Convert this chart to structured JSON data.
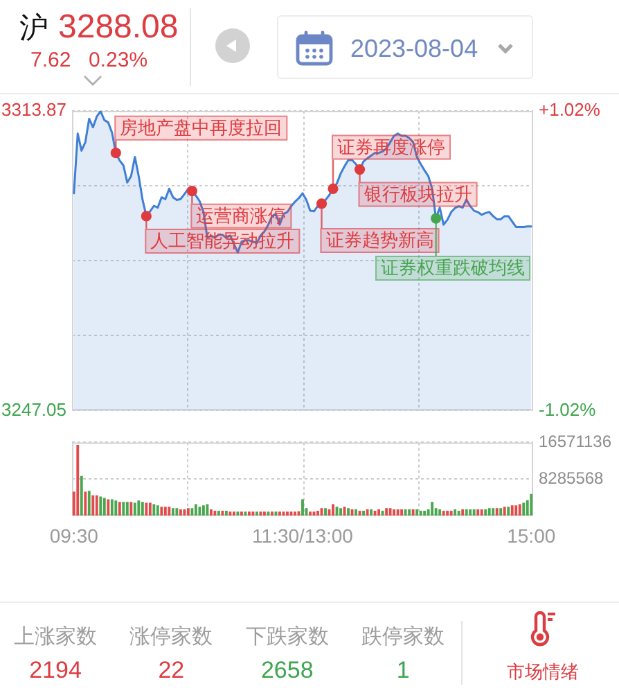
{
  "chart_data": [
    {
      "type": "other",
      "title": "沪",
      "annotations": [
        "3288.08",
        "7.62",
        "0.23%",
        "2023-08-04"
      ]
    },
    {
      "type": "area",
      "categories": [
        null,
        null,
        null,
        null,
        null,
        null,
        null,
        null,
        null,
        null,
        null,
        null,
        null,
        null,
        null,
        null,
        null,
        null,
        null,
        null,
        null,
        null,
        null,
        null,
        null,
        null,
        null,
        null,
        null,
        null,
        null,
        null,
        null,
        null,
        null,
        null,
        null,
        null,
        null,
        null,
        null,
        null,
        null,
        null,
        null,
        null,
        null,
        null,
        null,
        null,
        null,
        null,
        null,
        null,
        null,
        null,
        null,
        null,
        null,
        null,
        null,
        null,
        null,
        null,
        null,
        null,
        null,
        null,
        null,
        null,
        null,
        null,
        null,
        null,
        null,
        null,
        null,
        null,
        null,
        null,
        null,
        null,
        null,
        null,
        null,
        null,
        null,
        null,
        null,
        null,
        null,
        null,
        null,
        null,
        null,
        null,
        null,
        null,
        null,
        null,
        null,
        null,
        null,
        null,
        null,
        null,
        null,
        null,
        null,
        null,
        null,
        null,
        null,
        null,
        null,
        null,
        null,
        null,
        null,
        null,
        null
      ],
      "series": [
        {
          "type": "area",
          "color": "#3f7fd6",
          "values": [
            3295.5,
            3308.8,
            3305.0,
            3306.9,
            3312.1,
            3310.2,
            3312.6,
            3313.8,
            3311.8,
            3311.3,
            3309.0,
            3304.5,
            3302.8,
            3301.7,
            3297.9,
            3299.3,
            3303.6,
            3299.3,
            3294.1,
            3290.4,
            3291.5,
            3292.7,
            3292.3,
            3294.6,
            3294.2,
            3296.5,
            3294.6,
            3294.0,
            3294.2,
            3295.3,
            3296.5,
            3296.0,
            3295.0,
            3293.7,
            3291.3,
            3285.6,
            3286.0,
            3285.6,
            3286.3,
            3286.2,
            3285.6,
            3286.1,
            3284.2,
            3282.3,
            3284.7,
            3285.0,
            3285.0,
            3284.7,
            3284.4,
            3286.1,
            3287.0,
            3288.5,
            3290.4,
            3290.9,
            3288.5,
            3290.9,
            3291.3,
            3292.6,
            3293.6,
            3294.4,
            3295.5,
            3294.0,
            3291.6,
            3291.5,
            3292.7,
            3293.2,
            3294.0,
            3295.1,
            3296.5,
            3297.7,
            3299.9,
            3301.5,
            3302.9,
            3302.9,
            3302.0,
            3300.8,
            3302.6,
            3303.3,
            3303.9,
            3304.5,
            3304.5,
            3304.8,
            3305.5,
            3306.9,
            3308.3,
            3308.8,
            3308.3,
            3308.3,
            3307.8,
            3306.9,
            3303.6,
            3302.0,
            3300.6,
            3299.3,
            3296.5,
            3289.9,
            3292.3,
            3288.5,
            3289.6,
            3291.3,
            3292.2,
            3292.6,
            3292.3,
            3294.1,
            3292.6,
            3291.6,
            3291.3,
            3290.7,
            3291.1,
            3291.3,
            3290.4,
            3289.7,
            3289.7,
            3290.4,
            3290.4,
            3289.2,
            3288.0,
            3288.0,
            3288.0,
            3288.1,
            3288.1
          ]
        },
        {
          "type": "scatter",
          "values": [
            null,
            null,
            null,
            null,
            null,
            null,
            null,
            null,
            null,
            null,
            null,
            3304.5,
            null,
            null,
            null,
            null,
            null,
            null,
            null,
            3290.4,
            null,
            null,
            null,
            null,
            null,
            null,
            null,
            null,
            null,
            null,
            null,
            3296.0,
            null,
            null,
            null,
            null,
            null,
            null,
            null,
            null,
            null,
            null,
            null,
            null,
            null,
            null,
            null,
            null,
            null,
            null,
            null,
            null,
            null,
            null,
            null,
            null,
            null,
            null,
            null,
            null,
            null,
            null,
            null,
            null,
            null,
            3293.2,
            null,
            null,
            3296.5,
            null,
            null,
            null,
            null,
            null,
            null,
            3300.8,
            null,
            null,
            null,
            null,
            null,
            null,
            null,
            null,
            null,
            null,
            null,
            null,
            null,
            null,
            null,
            null,
            null,
            null,
            null,
            3289.9,
            null,
            null,
            null,
            null,
            null,
            null,
            null,
            null,
            null,
            null,
            null,
            null,
            null,
            null,
            null,
            null,
            null,
            null,
            null,
            null,
            null,
            null,
            null,
            null,
            null
          ],
          "colors": [
            null,
            null,
            null,
            null,
            null,
            null,
            null,
            null,
            null,
            null,
            null,
            "#df3b3f",
            null,
            null,
            null,
            null,
            null,
            null,
            null,
            "#df3b3f",
            null,
            null,
            null,
            null,
            null,
            null,
            null,
            null,
            null,
            null,
            null,
            "#df3b3f",
            null,
            null,
            null,
            null,
            null,
            null,
            null,
            null,
            null,
            null,
            null,
            null,
            null,
            null,
            null,
            null,
            null,
            null,
            null,
            null,
            null,
            null,
            null,
            null,
            null,
            null,
            null,
            null,
            null,
            null,
            null,
            null,
            null,
            "#df3b3f",
            null,
            null,
            "#df3b3f",
            null,
            null,
            null,
            null,
            null,
            null,
            "#df3b3f",
            null,
            null,
            null,
            null,
            null,
            null,
            null,
            null,
            null,
            null,
            null,
            null,
            null,
            null,
            null,
            null,
            null,
            null,
            null,
            "#46a54f",
            null,
            null,
            null,
            null,
            null,
            null,
            null,
            null,
            null,
            null,
            null,
            null,
            null,
            null,
            null,
            null,
            null,
            null,
            null,
            null,
            null,
            null,
            null,
            null,
            null
          ]
        }
      ],
      "ylim": [
        3247.05,
        3313.87
      ],
      "yticks": [
        3247.05,
        {
          "value": 3263.755,
          "label": null
        },
        {
          "value": 3280.46,
          "label": null
        },
        {
          "value": 3297.165,
          "label": null
        },
        3313.87
      ],
      "y2lim": [
        -1.02,
        1.02
      ],
      "y2ticks": [
        {
          "value": -1.02,
          "label": "-1.02%"
        },
        {
          "value": 1.02,
          "label": "+1.02%"
        }
      ],
      "tick_labels": "y",
      "grid": true,
      "annotations": [
        "房地产盘中再度拉回",
        "人工智能异动拉升",
        "运营商涨停",
        "证券趋势新高",
        "证券再度涨停",
        "银行板块拉升",
        "证券权重跌破均线"
      ]
    },
    {
      "type": "bar",
      "categories": [
        "09:30",
        null,
        null,
        null,
        null,
        null,
        null,
        null,
        null,
        null,
        null,
        null,
        null,
        null,
        null,
        null,
        null,
        null,
        null,
        null,
        null,
        null,
        null,
        null,
        null,
        null,
        null,
        null,
        null,
        null,
        null,
        null,
        null,
        null,
        null,
        null,
        null,
        null,
        null,
        null,
        null,
        null,
        null,
        null,
        null,
        null,
        null,
        null,
        null,
        null,
        null,
        null,
        null,
        null,
        null,
        null,
        null,
        null,
        null,
        null,
        "11:30/13:00",
        null,
        null,
        null,
        null,
        null,
        null,
        null,
        null,
        null,
        null,
        null,
        null,
        null,
        null,
        null,
        null,
        null,
        null,
        null,
        null,
        null,
        null,
        null,
        null,
        null,
        null,
        null,
        null,
        null,
        null,
        null,
        null,
        null,
        null,
        null,
        null,
        null,
        null,
        null,
        null,
        null,
        null,
        null,
        null,
        null,
        null,
        null,
        null,
        null,
        null,
        null,
        null,
        null,
        null,
        null,
        null,
        null,
        null,
        null,
        "15:00"
      ],
      "series": [
        {
          "axis": "y2",
          "values": [
            5400000,
            16000000,
            9000000,
            5400000,
            5600000,
            4600000,
            4600000,
            4300000,
            4000000,
            3700000,
            3700000,
            3400000,
            3100000,
            3100000,
            3100000,
            3100000,
            2900000,
            3400000,
            3100000,
            2900000,
            2900000,
            2600000,
            2300000,
            2000000,
            2000000,
            2000000,
            1700000,
            1700000,
            1400000,
            1400000,
            1700000,
            1700000,
            2600000,
            2000000,
            2300000,
            2600000,
            1400000,
            1100000,
            1100000,
            1100000,
            1100000,
            900000,
            900000,
            900000,
            900000,
            900000,
            900000,
            900000,
            900000,
            900000,
            900000,
            900000,
            900000,
            900000,
            900000,
            900000,
            900000,
            900000,
            900000,
            1000000,
            3700000,
            1700000,
            900000,
            900000,
            1100000,
            1700000,
            1700000,
            1400000,
            2600000,
            2000000,
            1700000,
            2000000,
            1700000,
            1400000,
            1400000,
            1100000,
            1100000,
            1400000,
            1400000,
            1100000,
            1400000,
            1100000,
            1700000,
            1700000,
            1400000,
            1400000,
            1400000,
            1400000,
            1400000,
            1400000,
            1400000,
            1100000,
            1100000,
            1400000,
            3100000,
            1700000,
            1400000,
            1100000,
            1100000,
            1100000,
            1400000,
            1100000,
            1400000,
            1400000,
            1400000,
            1400000,
            1400000,
            1400000,
            1400000,
            1700000,
            1700000,
            1700000,
            1700000,
            2000000,
            2000000,
            2300000,
            2300000,
            2600000,
            2900000,
            3500000,
            4900000
          ],
          "colors": [
            "#e04b4b",
            "#e04b4b",
            "#4aa64f",
            "#e04b4b",
            "#4aa64f",
            "#e04b4b",
            "#e04b4b",
            "#4aa64f",
            "#4aa64f",
            "#e04b4b",
            "#4aa64f",
            "#4aa64f",
            "#e04b4b",
            "#4aa64f",
            "#4aa64f",
            "#e04b4b",
            "#4aa64f",
            "#4aa64f",
            "#4aa64f",
            "#e04b4b",
            "#e04b4b",
            "#4aa64f",
            "#4aa64f",
            "#e04b4b",
            "#e04b4b",
            "#e04b4b",
            "#4aa64f",
            "#4aa64f",
            "#e04b4b",
            "#e04b4b",
            "#e04b4b",
            "#4aa64f",
            "#4aa64f",
            "#4aa64f",
            "#4aa64f",
            "#4aa64f",
            "#e04b4b",
            "#e04b4b",
            "#4aa64f",
            "#e04b4b",
            "#4aa64f",
            "#e04b4b",
            "#e04b4b",
            "#4aa64f",
            "#e04b4b",
            "#4aa64f",
            "#e04b4b",
            "#e04b4b",
            "#4aa64f",
            "#e04b4b",
            "#e04b4b",
            "#4aa64f",
            "#e04b4b",
            "#4aa64f",
            "#e04b4b",
            "#e04b4b",
            "#e04b4b",
            "#e04b4b",
            "#e04b4b",
            "#e04b4b",
            "#4aa64f",
            "#4aa64f",
            "#e04b4b",
            "#e04b4b",
            "#e04b4b",
            "#e04b4b",
            "#4aa64f",
            "#e04b4b",
            "#e04b4b",
            "#4aa64f",
            "#4aa64f",
            "#e04b4b",
            "#4aa64f",
            "#e04b4b",
            "#4aa64f",
            "#e04b4b",
            "#4aa64f",
            "#e04b4b",
            "#4aa64f",
            "#e04b4b",
            "#e04b4b",
            "#4aa64f",
            "#e04b4b",
            "#e04b4b",
            "#e04b4b",
            "#e04b4b",
            "#e04b4b",
            "#4aa64f",
            "#4aa64f",
            "#e04b4b",
            "#4aa64f",
            "#4aa64f",
            "#4aa64f",
            "#4aa64f",
            "#4aa64f",
            "#4aa64f",
            "#4aa64f",
            "#e04b4b",
            "#e04b4b",
            "#e04b4b",
            "#4aa64f",
            "#4aa64f",
            "#e04b4b",
            "#4aa64f",
            "#4aa64f",
            "#4aa64f",
            "#e04b4b",
            "#e04b4b",
            "#4aa64f",
            "#4aa64f",
            "#4aa64f",
            "#e04b4b",
            "#4aa64f",
            "#e04b4b",
            "#4aa64f",
            "#e04b4b",
            "#e04b4b",
            "#e04b4b",
            "#4aa64f",
            "#4aa64f",
            "#4aa64f"
          ]
        }
      ],
      "y2lim": [
        0,
        16571136
      ],
      "y2ticks": [
        8285568,
        16571136
      ],
      "grid": true
    },
    {
      "type": "other",
      "annotations": [
        "上涨家数",
        "2194",
        "涨停家数",
        "22",
        "下跌家数",
        "2658",
        "跌停家数",
        "1",
        "市场情绪"
      ]
    }
  ]
}
